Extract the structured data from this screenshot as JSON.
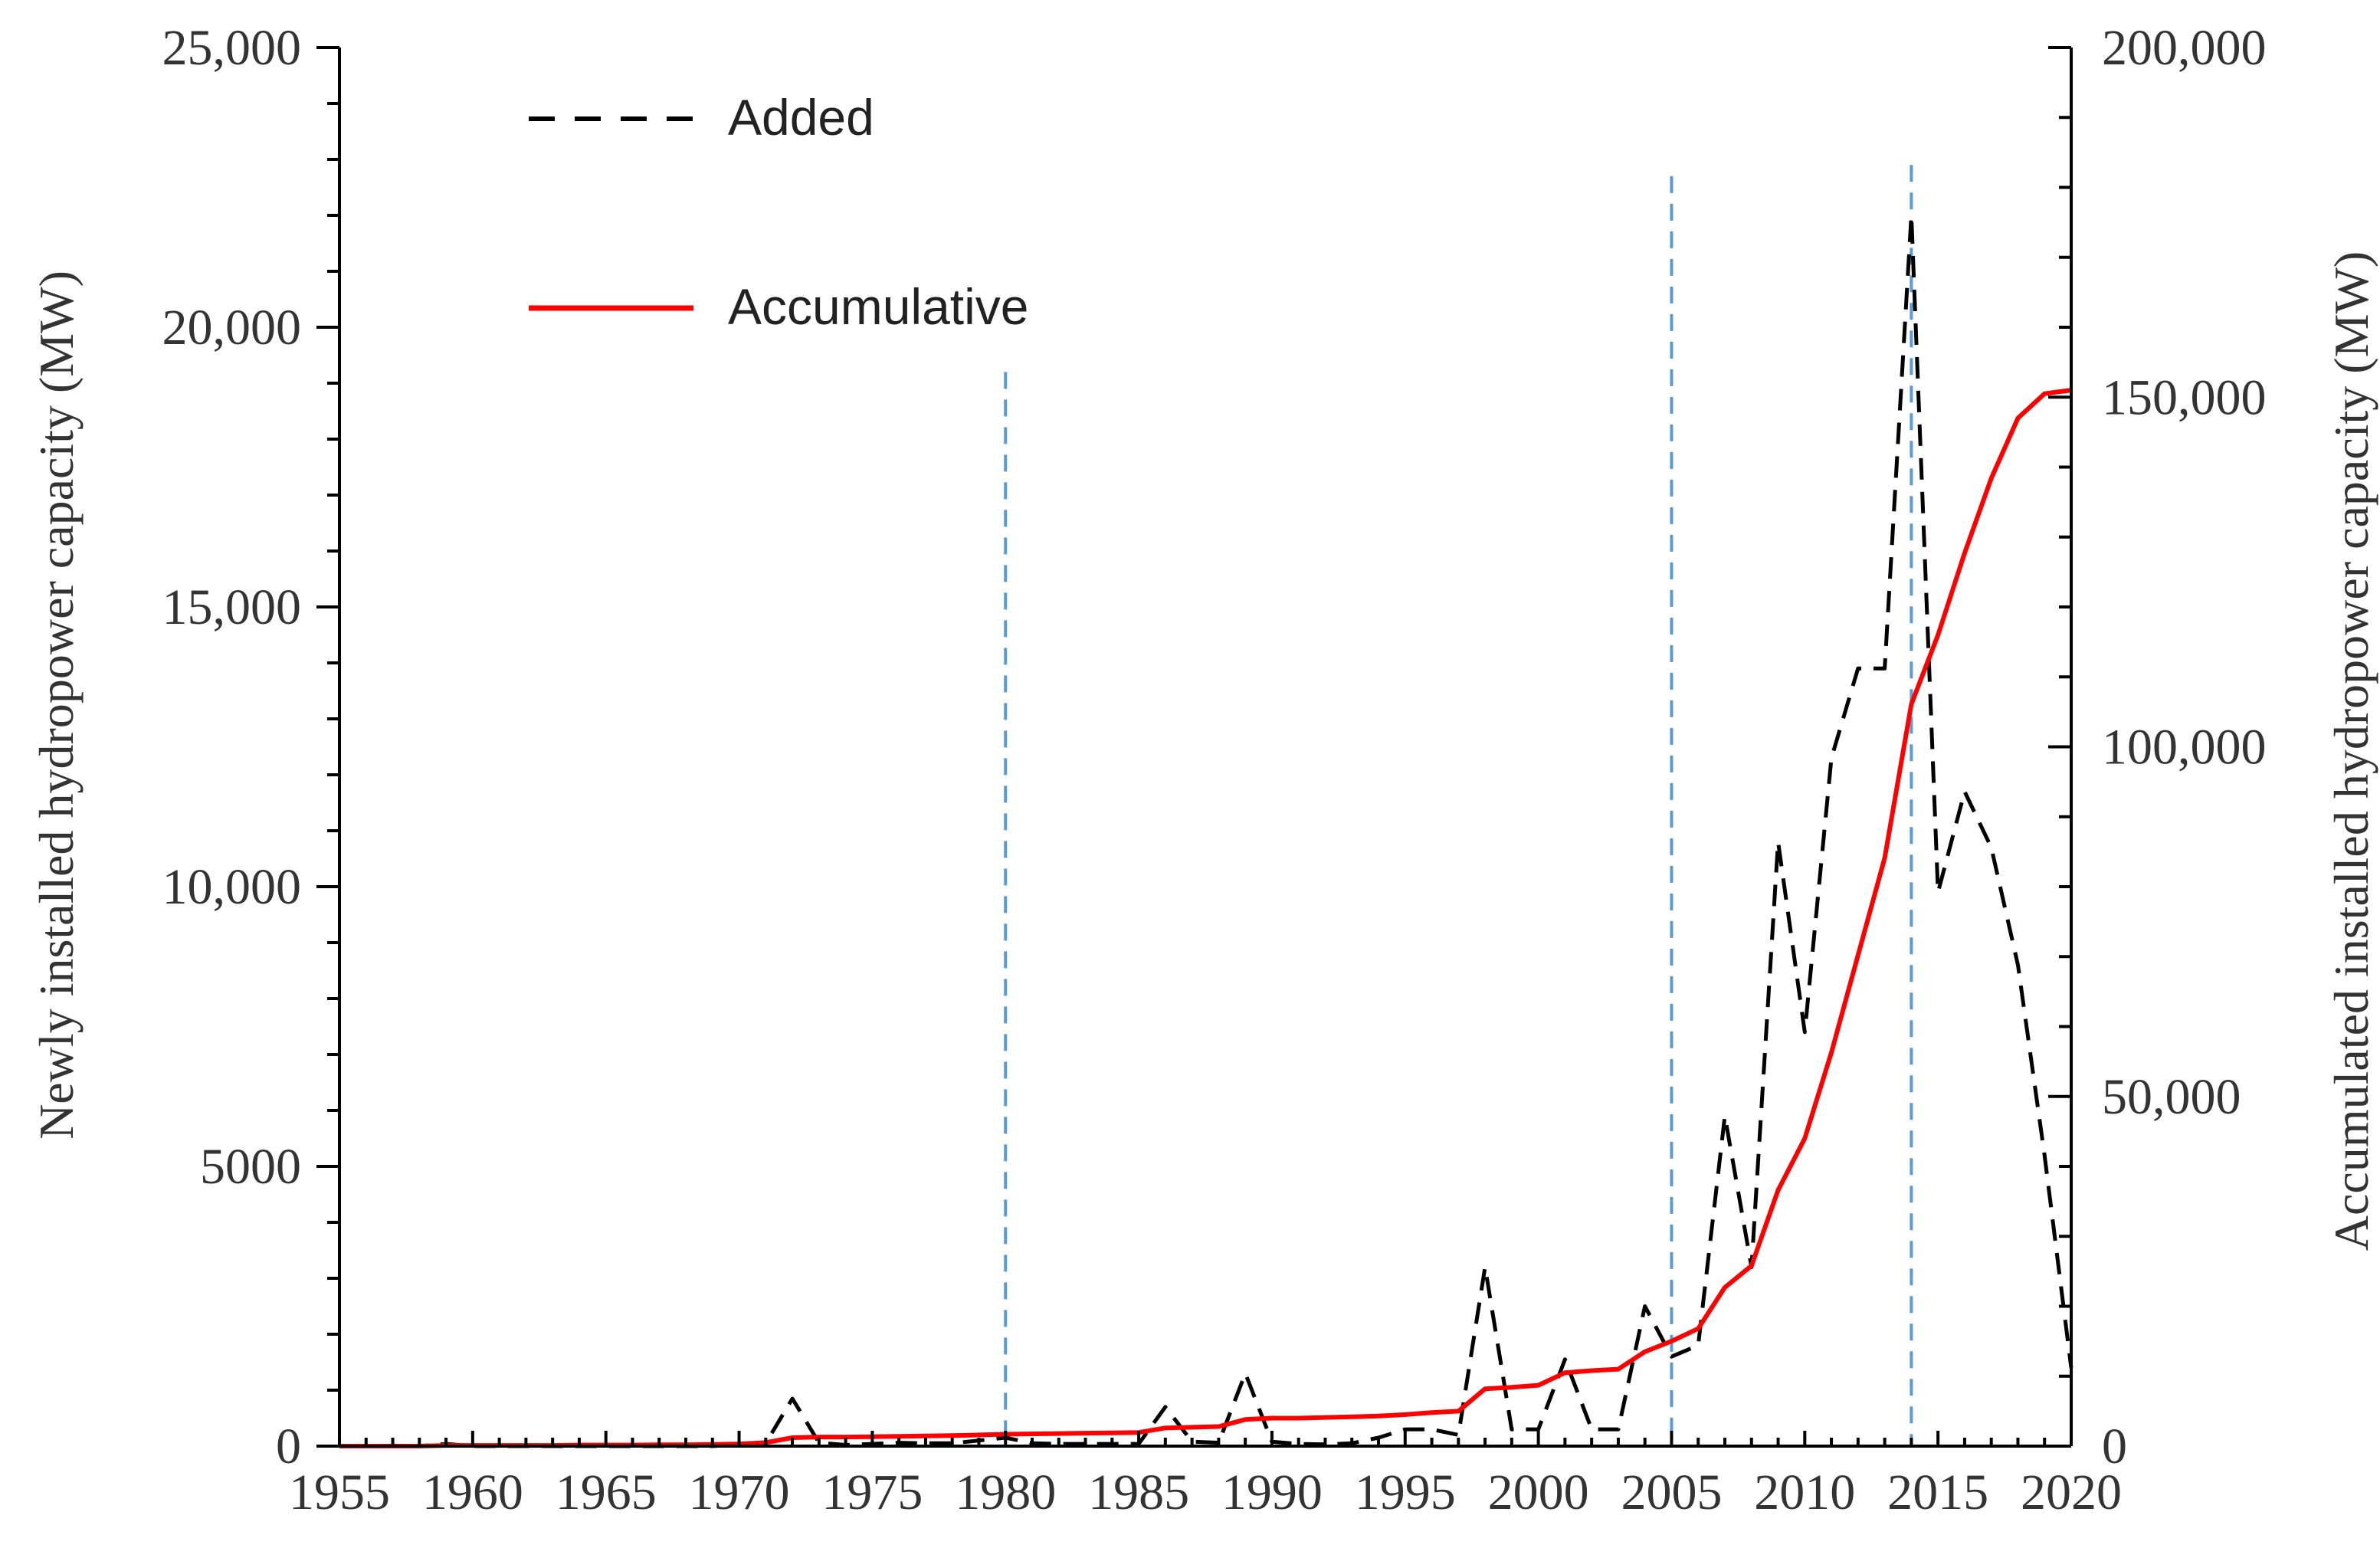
{
  "chart_data": {
    "type": "line",
    "xlabel": "",
    "ylabel": "Newly installed hydropower capacity (MW)",
    "y2label": "Accumulated installed hydropower capacity (MW)",
    "xlim": [
      1955,
      2020
    ],
    "ylim": [
      0,
      25000
    ],
    "y2lim": [
      0,
      200000
    ],
    "x_ticks": [
      1955,
      1960,
      1965,
      1970,
      1975,
      1980,
      1985,
      1990,
      1995,
      2000,
      2005,
      2010,
      2015,
      2020
    ],
    "x_tick_labels": [
      "1955",
      "1960",
      "1965",
      "1970",
      "1975",
      "1980",
      "1985",
      "1990",
      "1995",
      "2000",
      "2005",
      "2010",
      "2015",
      "2020"
    ],
    "y_ticks": [
      0,
      5000,
      10000,
      15000,
      20000,
      25000
    ],
    "y_tick_labels": [
      "0",
      "5000",
      "10,000",
      "15,000",
      "20,000",
      "25,000"
    ],
    "y2_ticks": [
      0,
      50000,
      100000,
      150000,
      200000
    ],
    "y2_tick_labels": [
      "0",
      "50,000",
      "100,000",
      "150,000",
      "200,000"
    ],
    "y2_minor_step": 10000,
    "grid": false,
    "legend_position": "top-left",
    "reference_lines": {
      "x": [
        1980,
        2005,
        2014
      ],
      "style": "dashed",
      "color": "#5b9bd5",
      "tops": [
        19200,
        22700,
        22900
      ]
    },
    "series": [
      {
        "name": "Added",
        "axis": "left",
        "style": "dashed",
        "color": "#000000",
        "x": [
          1955,
          1956,
          1957,
          1958,
          1959,
          1960,
          1961,
          1962,
          1963,
          1964,
          1965,
          1966,
          1967,
          1968,
          1969,
          1970,
          1971,
          1972,
          1973,
          1974,
          1975,
          1976,
          1977,
          1978,
          1979,
          1980,
          1981,
          1982,
          1983,
          1984,
          1985,
          1986,
          1987,
          1988,
          1989,
          1990,
          1991,
          1992,
          1993,
          1994,
          1995,
          1996,
          1997,
          1998,
          1999,
          2000,
          2001,
          2002,
          2003,
          2004,
          2005,
          2006,
          2007,
          2008,
          2009,
          2010,
          2011,
          2012,
          2013,
          2014,
          2015,
          2016,
          2017,
          2018,
          2019,
          2020
        ],
        "values": [
          0,
          0,
          0,
          0,
          40,
          0,
          0,
          0,
          0,
          0,
          0,
          0,
          0,
          0,
          0,
          30,
          50,
          850,
          60,
          20,
          40,
          60,
          50,
          50,
          100,
          150,
          50,
          40,
          40,
          40,
          40,
          700,
          80,
          60,
          1300,
          80,
          40,
          30,
          50,
          150,
          300,
          300,
          200,
          3200,
          300,
          300,
          1550,
          300,
          300,
          2500,
          1600,
          1800,
          5900,
          3200,
          10800,
          7400,
          12300,
          13900,
          13900,
          22000,
          9900,
          11700,
          10700,
          8600,
          5200,
          1400
        ]
      },
      {
        "name": "Accumulative",
        "axis": "right",
        "style": "solid",
        "color": "#ff0000",
        "x": [
          1955,
          1956,
          1957,
          1958,
          1959,
          1960,
          1961,
          1962,
          1963,
          1964,
          1965,
          1966,
          1967,
          1968,
          1969,
          1970,
          1971,
          1972,
          1973,
          1974,
          1975,
          1976,
          1977,
          1978,
          1979,
          1980,
          1981,
          1982,
          1983,
          1984,
          1985,
          1986,
          1987,
          1988,
          1989,
          1990,
          1991,
          1992,
          1993,
          1994,
          1995,
          1996,
          1997,
          1998,
          1999,
          2000,
          2001,
          2002,
          2003,
          2004,
          2005,
          2006,
          2007,
          2008,
          2009,
          2010,
          2011,
          2012,
          2013,
          2014,
          2015,
          2016,
          2017,
          2018,
          2019,
          2020
        ],
        "values": [
          0,
          0,
          0,
          0,
          100,
          100,
          100,
          100,
          100,
          150,
          150,
          150,
          200,
          200,
          250,
          300,
          500,
          1200,
          1300,
          1300,
          1350,
          1400,
          1450,
          1500,
          1600,
          1700,
          1750,
          1800,
          1850,
          1900,
          1950,
          2600,
          2700,
          2800,
          3800,
          4000,
          4000,
          4100,
          4200,
          4300,
          4500,
          4800,
          5000,
          8200,
          8400,
          8700,
          10500,
          10800,
          11000,
          13500,
          15000,
          16800,
          22700,
          25800,
          36600,
          44000,
          56300,
          70200,
          84100,
          106100,
          116000,
          127700,
          138400,
          147000,
          150500,
          151000
        ]
      }
    ]
  }
}
